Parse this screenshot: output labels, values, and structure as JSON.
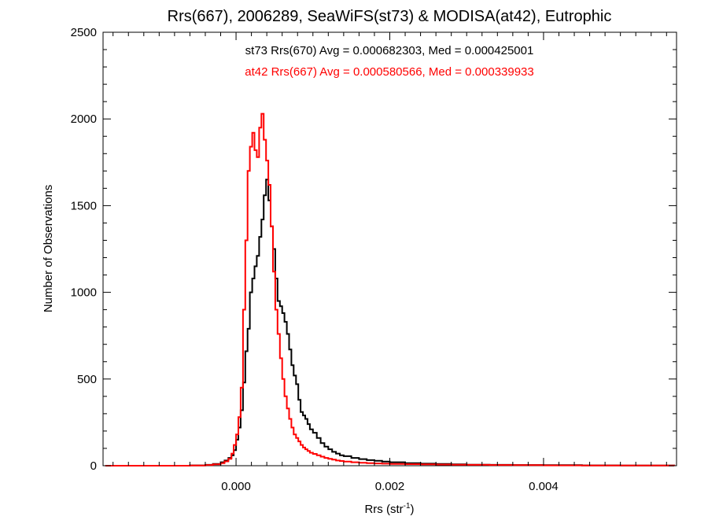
{
  "chart_data": {
    "type": "histogram",
    "title": "Rrs(667), 2006289, SeaWiFS(st73) & MODISA(at42), Eutrophic",
    "xlabel_main": "Rrs (str",
    "xlabel_sup": "-1",
    "xlabel_close": ")",
    "ylabel": "Number of Observations",
    "xlim": [
      -0.00173,
      0.00573
    ],
    "ylim": [
      0,
      2500
    ],
    "grid": false,
    "xticks": [
      {
        "value": 0.0,
        "label": "0.000"
      },
      {
        "value": 0.002,
        "label": "0.002"
      },
      {
        "value": 0.004,
        "label": "0.004"
      }
    ],
    "yticks": [
      {
        "value": 0,
        "label": "0"
      },
      {
        "value": 500,
        "label": "500"
      },
      {
        "value": 1000,
        "label": "1000"
      },
      {
        "value": 1500,
        "label": "1500"
      },
      {
        "value": 2000,
        "label": "2000"
      },
      {
        "value": 2500,
        "label": "2500"
      }
    ],
    "annotations": [
      {
        "text": "st73 Rrs(670) Avg = 0.000682303, Med = 0.000425001",
        "color": "#000000"
      },
      {
        "text": "at42 Rrs(667) Avg = 0.000580566, Med = 0.000339933",
        "color": "#ff0000"
      }
    ],
    "series": [
      {
        "color": "#000000",
        "points": [
          [
            -0.0017,
            0
          ],
          [
            -0.001,
            0
          ],
          [
            -0.0006,
            2
          ],
          [
            -0.0004,
            5
          ],
          [
            -0.0003,
            10
          ],
          [
            -0.0002,
            20
          ],
          [
            -0.00015,
            30
          ],
          [
            -0.0001,
            45
          ],
          [
            -6e-05,
            60
          ],
          [
            -3e-05,
            90
          ],
          [
            0.0,
            150
          ],
          [
            3e-05,
            220
          ],
          [
            6e-05,
            320
          ],
          [
            9e-05,
            480
          ],
          [
            0.00012,
            660
          ],
          [
            0.00015,
            790
          ],
          [
            0.00018,
            1000
          ],
          [
            0.00021,
            1080
          ],
          [
            0.00024,
            1150
          ],
          [
            0.00027,
            1210
          ],
          [
            0.0003,
            1320
          ],
          [
            0.00033,
            1420
          ],
          [
            0.00036,
            1560
          ],
          [
            0.00039,
            1650
          ],
          [
            0.00042,
            1530
          ],
          [
            0.00045,
            1380
          ],
          [
            0.00048,
            1250
          ],
          [
            0.00051,
            1080
          ],
          [
            0.00054,
            950
          ],
          [
            0.00057,
            920
          ],
          [
            0.0006,
            880
          ],
          [
            0.00063,
            830
          ],
          [
            0.00066,
            760
          ],
          [
            0.00069,
            670
          ],
          [
            0.00072,
            580
          ],
          [
            0.00075,
            520
          ],
          [
            0.00078,
            470
          ],
          [
            0.00081,
            380
          ],
          [
            0.00084,
            310
          ],
          [
            0.00087,
            290
          ],
          [
            0.0009,
            270
          ],
          [
            0.00093,
            240
          ],
          [
            0.00096,
            210
          ],
          [
            0.001,
            190
          ],
          [
            0.00105,
            160
          ],
          [
            0.0011,
            130
          ],
          [
            0.00115,
            110
          ],
          [
            0.0012,
            95
          ],
          [
            0.00125,
            80
          ],
          [
            0.0013,
            70
          ],
          [
            0.00135,
            60
          ],
          [
            0.0014,
            55
          ],
          [
            0.0015,
            45
          ],
          [
            0.0016,
            38
          ],
          [
            0.0017,
            32
          ],
          [
            0.0018,
            28
          ],
          [
            0.0019,
            24
          ],
          [
            0.002,
            20
          ],
          [
            0.0022,
            15
          ],
          [
            0.0024,
            12
          ],
          [
            0.0026,
            10
          ],
          [
            0.0028,
            8
          ],
          [
            0.003,
            6
          ],
          [
            0.0033,
            5
          ],
          [
            0.0036,
            4
          ],
          [
            0.004,
            3
          ],
          [
            0.0045,
            2
          ],
          [
            0.005,
            1
          ],
          [
            0.0057,
            0
          ]
        ]
      },
      {
        "color": "#ff0000",
        "points": [
          [
            -0.0017,
            0
          ],
          [
            -0.001,
            0
          ],
          [
            -0.0006,
            1
          ],
          [
            -0.0004,
            4
          ],
          [
            -0.0003,
            8
          ],
          [
            -0.0002,
            15
          ],
          [
            -0.00015,
            25
          ],
          [
            -0.0001,
            40
          ],
          [
            -6e-05,
            70
          ],
          [
            -3e-05,
            120
          ],
          [
            0.0,
            180
          ],
          [
            3e-05,
            280
          ],
          [
            6e-05,
            450
          ],
          [
            9e-05,
            900
          ],
          [
            0.00012,
            1300
          ],
          [
            0.00015,
            1700
          ],
          [
            0.00018,
            1840
          ],
          [
            0.00021,
            1920
          ],
          [
            0.00024,
            1820
          ],
          [
            0.00027,
            1780
          ],
          [
            0.0003,
            1950
          ],
          [
            0.00033,
            2030
          ],
          [
            0.00036,
            1880
          ],
          [
            0.00039,
            1760
          ],
          [
            0.00042,
            1620
          ],
          [
            0.00045,
            1380
          ],
          [
            0.00048,
            1120
          ],
          [
            0.00051,
            900
          ],
          [
            0.00054,
            760
          ],
          [
            0.00057,
            620
          ],
          [
            0.0006,
            500
          ],
          [
            0.00063,
            400
          ],
          [
            0.00066,
            330
          ],
          [
            0.00069,
            270
          ],
          [
            0.00072,
            220
          ],
          [
            0.00075,
            180
          ],
          [
            0.00078,
            160
          ],
          [
            0.00081,
            140
          ],
          [
            0.00084,
            120
          ],
          [
            0.00087,
            105
          ],
          [
            0.0009,
            95
          ],
          [
            0.00093,
            85
          ],
          [
            0.00096,
            75
          ],
          [
            0.001,
            68
          ],
          [
            0.00105,
            60
          ],
          [
            0.0011,
            52
          ],
          [
            0.00115,
            45
          ],
          [
            0.0012,
            40
          ],
          [
            0.00125,
            35
          ],
          [
            0.0013,
            30
          ],
          [
            0.00135,
            27
          ],
          [
            0.0014,
            24
          ],
          [
            0.0015,
            20
          ],
          [
            0.0016,
            17
          ],
          [
            0.0017,
            15
          ],
          [
            0.0018,
            13
          ],
          [
            0.0019,
            12
          ],
          [
            0.002,
            10
          ],
          [
            0.0022,
            9
          ],
          [
            0.0024,
            8
          ],
          [
            0.0026,
            7
          ],
          [
            0.0028,
            6
          ],
          [
            0.003,
            5
          ],
          [
            0.0033,
            4
          ],
          [
            0.0036,
            3
          ],
          [
            0.004,
            2
          ],
          [
            0.0045,
            1
          ],
          [
            0.005,
            1
          ],
          [
            0.0057,
            0
          ]
        ]
      }
    ]
  }
}
